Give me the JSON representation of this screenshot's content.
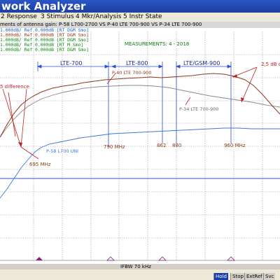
{
  "window": {
    "title": "work Analyzer"
  },
  "menu": [
    {
      "label": "2 Response"
    },
    {
      "label": "3 Stimulus"
    },
    {
      "label": "4 Mkr/Analysis"
    },
    {
      "label": "5 Instr State"
    }
  ],
  "chart_title": "ments of antenna gain: P-58 L700-2700 VS P-40 LTE 700-900 VS P-34 LTE 700-900",
  "traces": [
    {
      "text": "1.000dB/ Ref 0.000dB [RT D&M Smo]",
      "color": "#2060d0"
    },
    {
      "text": "1.000dB/ Ref 0.000dB [RT D&M Smo]",
      "color": "#8b3a1a"
    },
    {
      "text": "1.000dB/ Ref 0.000dB [RT D&M Smo]",
      "color": "#0a8a0a"
    },
    {
      "text": "1.000dB/ Ref 0.000dB [RT M Smo]",
      "color": "#0a8a0a"
    },
    {
      "text": "1.000dB/ Ref 0.000dB [RT D&M Smo]",
      "color": "#0a8a0a"
    }
  ],
  "measurements": "MEASUREMENTS: 4 - 2018",
  "bands": [
    {
      "label": "LTE-700"
    },
    {
      "label": "LTE-800"
    },
    {
      "label": "LTE/GSM-900"
    }
  ],
  "annotations": {
    "difference": "5 difference",
    "db": "2,5 dB d",
    "p40": "P-40 LTE 700-900",
    "p34": "P-34 LTE 700-900",
    "p58": "P-58 L700 UNI"
  },
  "freq_markers": [
    {
      "label": "695 MHz"
    },
    {
      "label": "790 MHz"
    },
    {
      "label": "862"
    },
    {
      "label": "880"
    },
    {
      "label": "960 MHz"
    }
  ],
  "status": {
    "ifbw": "IFBW 70 kHz",
    "buttons": [
      "Hold",
      "Stop",
      "ExtRef",
      "Svc"
    ]
  },
  "colors": {
    "grid": "#9a9a9a",
    "p58": "#3a7ad8",
    "p40": "#8b3a1a",
    "p34": "#8a8a8a",
    "band": "#2d4fd0",
    "annot": "#c02020",
    "ref": "#3050e0"
  },
  "chart_data": {
    "type": "line",
    "series": [
      {
        "name": "P-58 L700 UNI",
        "values": []
      },
      {
        "name": "P-40 LTE 700-900",
        "values": []
      },
      {
        "name": "P-34 LTE 700-900",
        "values": []
      }
    ]
  }
}
